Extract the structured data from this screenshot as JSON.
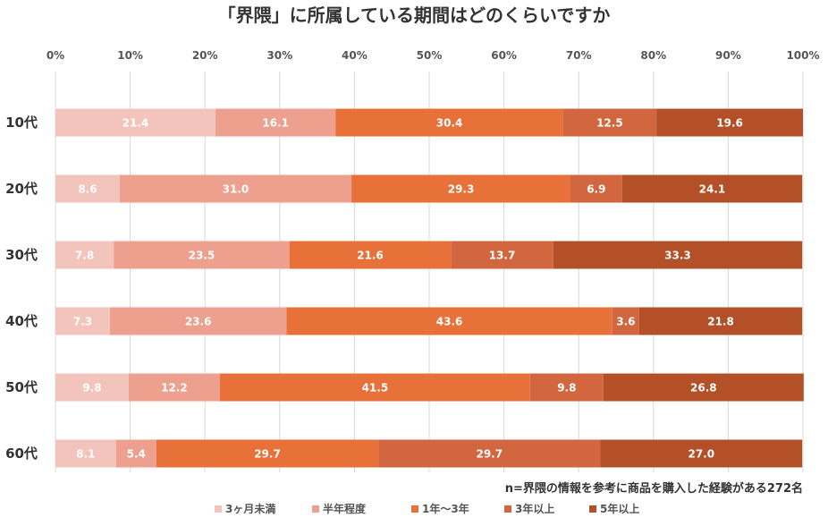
{
  "chart_data": {
    "type": "bar",
    "orientation": "horizontal",
    "stacked": true,
    "percent_stacked": true,
    "title": "「界隈」に所属している期間はどのくらいですか",
    "note": "n=界隈の情報を参考に商品を購入した経験がある272名",
    "xlim": [
      0,
      100
    ],
    "x_ticks": [
      "0%",
      "10%",
      "20%",
      "30%",
      "40%",
      "50%",
      "60%",
      "70%",
      "80%",
      "90%",
      "100%"
    ],
    "grid": "vertical",
    "legend_position": "bottom",
    "categories": [
      "10代",
      "20代",
      "30代",
      "40代",
      "50代",
      "60代"
    ],
    "series": [
      {
        "name": "3ヶ月未満",
        "color": "#F2C4BC",
        "values": [
          21.4,
          8.6,
          7.8,
          7.3,
          9.8,
          8.1
        ]
      },
      {
        "name": "半年程度",
        "color": "#EDA08E",
        "values": [
          16.1,
          31.0,
          23.5,
          23.6,
          12.2,
          5.4
        ]
      },
      {
        "name": "1年〜3年",
        "color": "#E8713A",
        "values": [
          30.4,
          29.3,
          21.6,
          43.6,
          41.5,
          29.7
        ]
      },
      {
        "name": "3年以上",
        "color": "#D2663E",
        "values": [
          12.5,
          6.9,
          13.7,
          3.6,
          9.8,
          29.7
        ]
      },
      {
        "name": "5年以上",
        "color": "#B35027",
        "values": [
          19.6,
          24.1,
          33.3,
          21.8,
          26.8,
          27.0
        ]
      }
    ]
  }
}
